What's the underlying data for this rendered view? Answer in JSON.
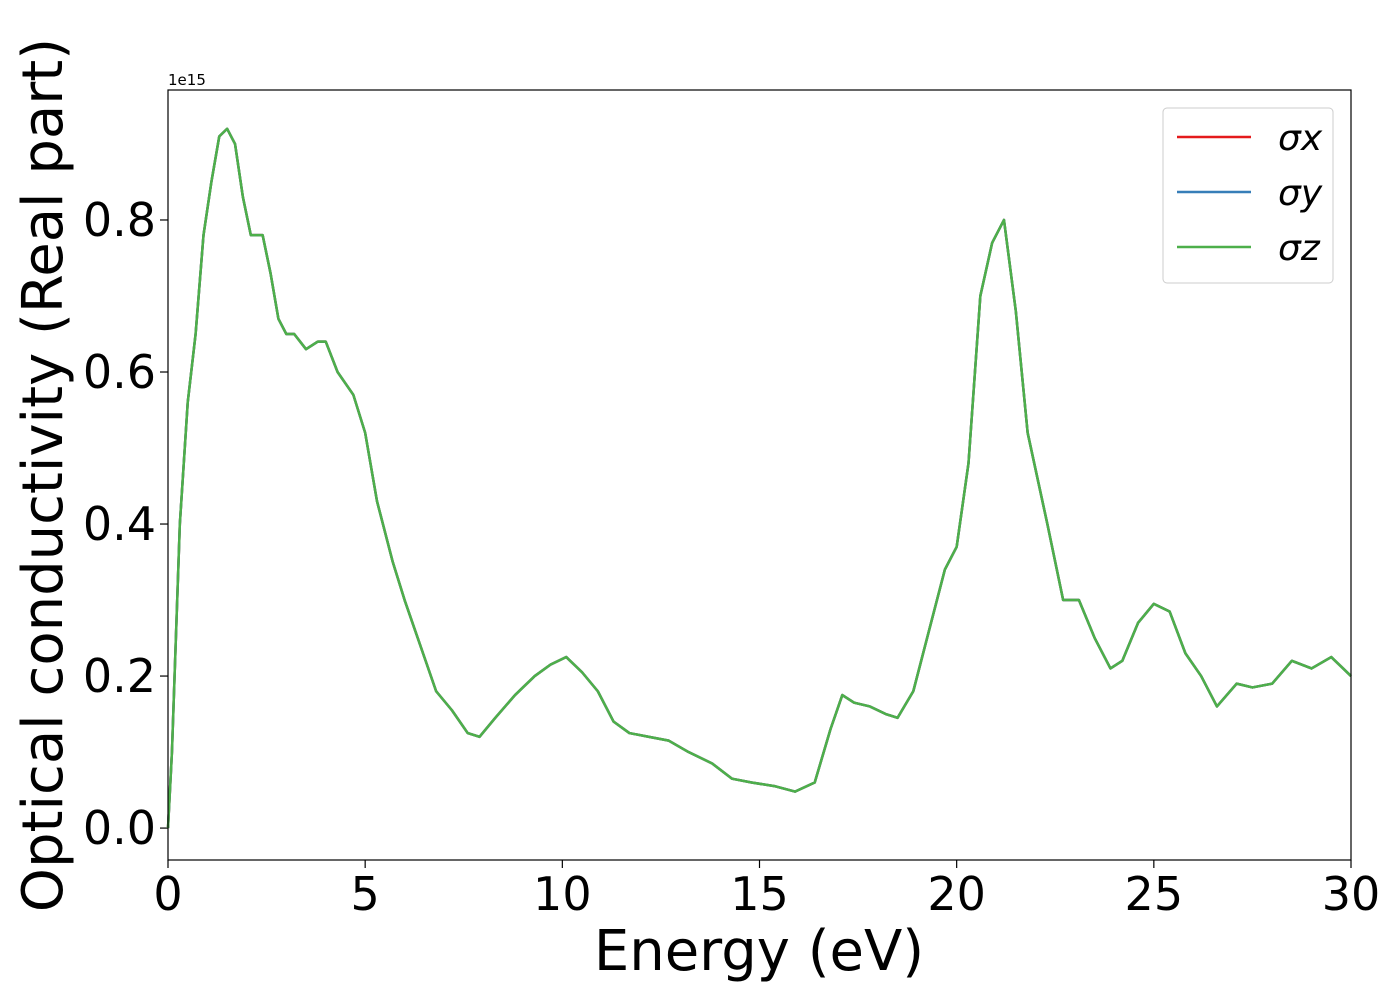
{
  "chart_data": {
    "type": "line",
    "xlabel": "Energy (eV)",
    "ylabel": "Optical conductivity (Real part)",
    "y_offset_label": "1e15",
    "x": [
      0,
      0.1,
      0.3,
      0.5,
      0.7,
      0.9,
      1.1,
      1.3,
      1.5,
      1.7,
      1.9,
      2.1,
      2.4,
      2.6,
      2.8,
      3.0,
      3.2,
      3.5,
      3.8,
      4.0,
      4.3,
      4.7,
      5.0,
      5.3,
      5.7,
      6.0,
      6.4,
      6.8,
      7.2,
      7.6,
      7.9,
      8.3,
      8.8,
      9.3,
      9.7,
      10.1,
      10.5,
      10.9,
      11.3,
      11.7,
      12.2,
      12.7,
      13.2,
      13.8,
      14.3,
      14.8,
      15.4,
      15.9,
      16.4,
      16.8,
      17.1,
      17.4,
      17.8,
      18.2,
      18.5,
      18.9,
      19.3,
      19.7,
      20.0,
      20.3,
      20.6,
      20.9,
      21.2,
      21.5,
      21.8,
      22.3,
      22.7,
      23.1,
      23.5,
      23.9,
      24.2,
      24.6,
      25.0,
      25.4,
      25.8,
      26.2,
      26.6,
      27.1,
      27.5,
      28.0,
      28.5,
      29.0,
      29.5,
      30.0
    ],
    "series": [
      {
        "name": "σx",
        "color": "#e41a1c",
        "values": [
          0.0,
          0.1,
          0.4,
          0.56,
          0.65,
          0.78,
          0.85,
          0.91,
          0.92,
          0.9,
          0.83,
          0.78,
          0.78,
          0.73,
          0.67,
          0.65,
          0.65,
          0.63,
          0.64,
          0.64,
          0.6,
          0.57,
          0.52,
          0.43,
          0.35,
          0.3,
          0.24,
          0.18,
          0.155,
          0.125,
          0.12,
          0.145,
          0.175,
          0.2,
          0.215,
          0.225,
          0.205,
          0.18,
          0.14,
          0.125,
          0.12,
          0.115,
          0.1,
          0.085,
          0.065,
          0.06,
          0.055,
          0.048,
          0.06,
          0.13,
          0.175,
          0.165,
          0.16,
          0.15,
          0.145,
          0.18,
          0.26,
          0.34,
          0.37,
          0.48,
          0.7,
          0.77,
          0.8,
          0.68,
          0.52,
          0.4,
          0.3,
          0.3,
          0.25,
          0.21,
          0.22,
          0.27,
          0.295,
          0.285,
          0.23,
          0.2,
          0.16,
          0.19,
          0.185,
          0.19,
          0.22,
          0.21,
          0.225,
          0.2
        ]
      },
      {
        "name": "σy",
        "color": "#377eb8",
        "values": [
          0.0,
          0.1,
          0.4,
          0.56,
          0.65,
          0.78,
          0.85,
          0.91,
          0.92,
          0.9,
          0.83,
          0.78,
          0.78,
          0.73,
          0.67,
          0.65,
          0.65,
          0.63,
          0.64,
          0.64,
          0.6,
          0.57,
          0.52,
          0.43,
          0.35,
          0.3,
          0.24,
          0.18,
          0.155,
          0.125,
          0.12,
          0.145,
          0.175,
          0.2,
          0.215,
          0.225,
          0.205,
          0.18,
          0.14,
          0.125,
          0.12,
          0.115,
          0.1,
          0.085,
          0.065,
          0.06,
          0.055,
          0.048,
          0.06,
          0.13,
          0.175,
          0.165,
          0.16,
          0.15,
          0.145,
          0.18,
          0.26,
          0.34,
          0.37,
          0.48,
          0.7,
          0.77,
          0.8,
          0.68,
          0.52,
          0.4,
          0.3,
          0.3,
          0.25,
          0.21,
          0.22,
          0.27,
          0.295,
          0.285,
          0.23,
          0.2,
          0.16,
          0.19,
          0.185,
          0.19,
          0.22,
          0.21,
          0.225,
          0.2
        ]
      },
      {
        "name": "σz",
        "color": "#4daf4a",
        "values": [
          0.0,
          0.1,
          0.4,
          0.56,
          0.65,
          0.78,
          0.85,
          0.91,
          0.92,
          0.9,
          0.83,
          0.78,
          0.78,
          0.73,
          0.67,
          0.65,
          0.65,
          0.63,
          0.64,
          0.64,
          0.6,
          0.57,
          0.52,
          0.43,
          0.35,
          0.3,
          0.24,
          0.18,
          0.155,
          0.125,
          0.12,
          0.145,
          0.175,
          0.2,
          0.215,
          0.225,
          0.205,
          0.18,
          0.14,
          0.125,
          0.12,
          0.115,
          0.1,
          0.085,
          0.065,
          0.06,
          0.055,
          0.048,
          0.06,
          0.13,
          0.175,
          0.165,
          0.16,
          0.15,
          0.145,
          0.18,
          0.26,
          0.34,
          0.37,
          0.48,
          0.7,
          0.77,
          0.8,
          0.68,
          0.52,
          0.4,
          0.3,
          0.3,
          0.25,
          0.21,
          0.22,
          0.27,
          0.295,
          0.285,
          0.23,
          0.2,
          0.16,
          0.19,
          0.185,
          0.19,
          0.22,
          0.21,
          0.225,
          0.2
        ]
      }
    ],
    "xlim": [
      0,
      30
    ],
    "xticks": [
      0,
      5,
      10,
      15,
      20,
      25,
      30
    ],
    "ylim": [
      -0.042,
      0.971
    ],
    "yticks": [
      {
        "value": 0,
        "label": "0.0"
      },
      0.2,
      0.4,
      0.6,
      0.8
    ],
    "grid": false,
    "legend": "upper right"
  }
}
